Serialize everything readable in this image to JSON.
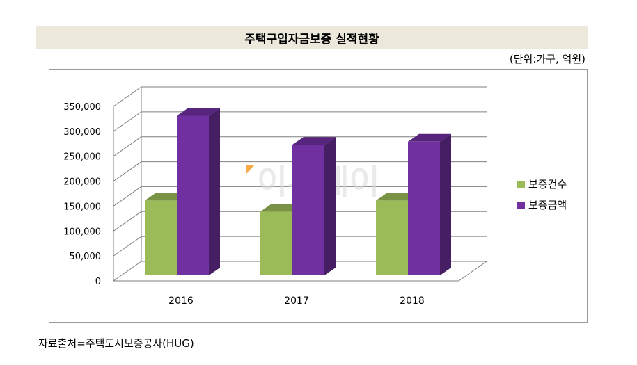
{
  "header": {
    "title": "주택구입자금보증 실적현황",
    "unit": "(단위:가구, 억원)"
  },
  "footer": {
    "source": "자료출처=주택도시보증공사(HUG)"
  },
  "watermark": {
    "text": "이투데이"
  },
  "colors": {
    "series1": "#9bbb59",
    "series2": "#7030a0",
    "grid": "#7f7f7f"
  },
  "chart_data": {
    "type": "bar",
    "title": "주택구입자금보증 실적현황",
    "categories": [
      "2016",
      "2017",
      "2018"
    ],
    "series": [
      {
        "name": "보증건수",
        "values": [
          150000,
          128000,
          150000
        ]
      },
      {
        "name": "보증금액",
        "values": [
          320000,
          262000,
          268000
        ]
      }
    ],
    "ylim": [
      0,
      350000
    ],
    "yticks": [
      0,
      50000,
      100000,
      150000,
      200000,
      250000,
      300000,
      350000
    ],
    "ytick_labels": [
      "0",
      "50,000",
      "100,000",
      "150,000",
      "200,000",
      "250,000",
      "300,000",
      "350,000"
    ],
    "xlabel": "",
    "ylabel": "",
    "legend_position": "right",
    "grid": true
  }
}
